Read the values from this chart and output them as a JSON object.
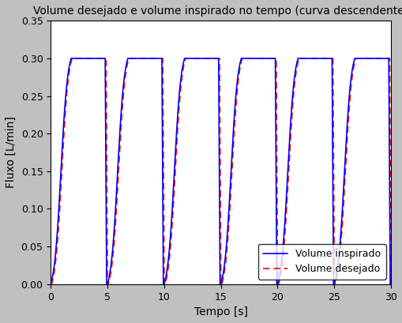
{
  "title": "Volume desejado e volume inspirado no tempo (curva descendente)",
  "xlabel": "Tempo [s]",
  "ylabel": "Fluxo [L/min]",
  "xlim": [
    0,
    30
  ],
  "ylim": [
    0,
    0.35
  ],
  "yticks": [
    0,
    0.05,
    0.1,
    0.15,
    0.2,
    0.25,
    0.3,
    0.35
  ],
  "xticks": [
    0,
    5,
    10,
    15,
    20,
    25,
    30
  ],
  "high_val": 0.3,
  "low_val": 0.0,
  "period": 5.0,
  "rise_duration": 1.8,
  "high_duration": 3.0,
  "fall_duration": 0.12,
  "low_duration": 0.08,
  "sigmoid_k": 6.0,
  "desired_lead": 0.08,
  "color_inspired": "#0000ff",
  "color_desired": "#ff0000",
  "background_color": "#c0c0c0",
  "axes_background": "#ffffff",
  "legend_labels": [
    "Volume inspirado",
    "Volume desejado"
  ],
  "legend_loc": "lower right",
  "title_fontsize": 10,
  "label_fontsize": 10,
  "tick_fontsize": 9,
  "linewidth": 1.2
}
